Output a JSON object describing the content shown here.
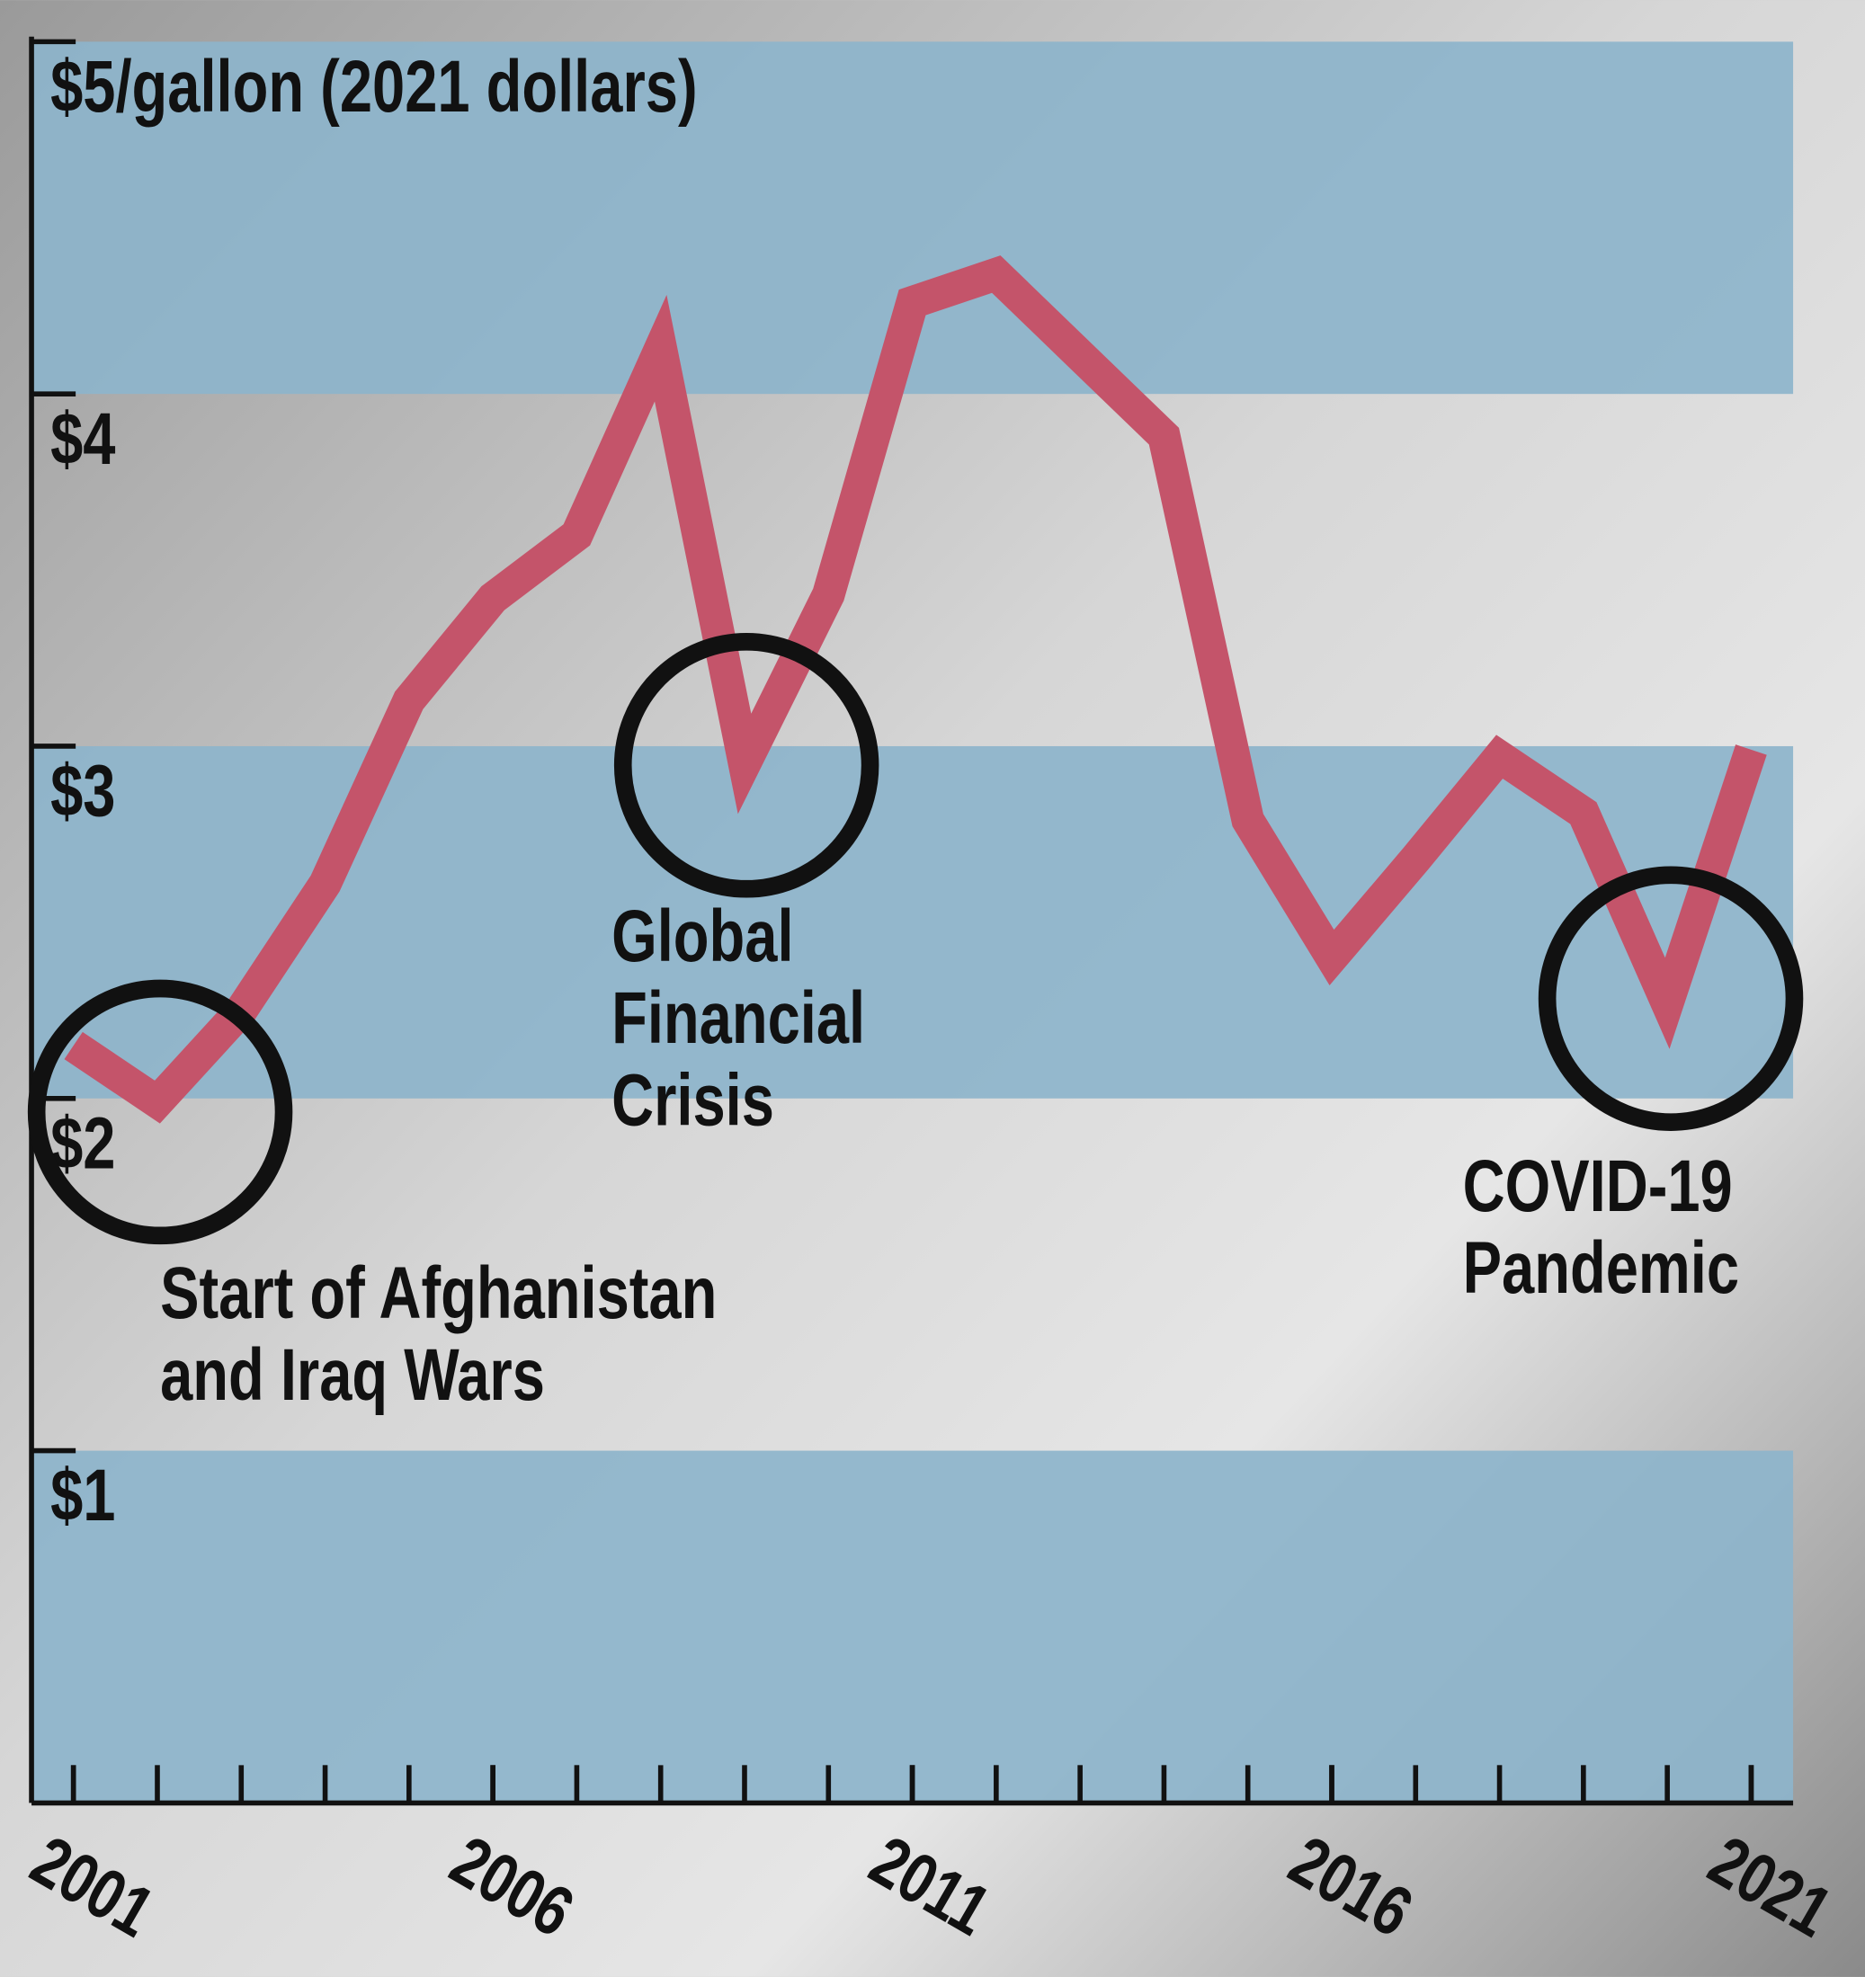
{
  "chart_data": {
    "type": "line",
    "x": [
      2001,
      2002,
      2003,
      2004,
      2005,
      2006,
      2007,
      2008,
      2009,
      2010,
      2011,
      2012,
      2013,
      2014,
      2015,
      2016,
      2017,
      2018,
      2019,
      2020,
      2021
    ],
    "series": [
      {
        "color": "#c4546a",
        "values": [
          2.15,
          1.99,
          2.25,
          2.61,
          3.13,
          3.42,
          3.6,
          4.13,
          2.95,
          3.43,
          4.26,
          4.34,
          4.11,
          3.88,
          2.79,
          2.4,
          2.68,
          2.97,
          2.81,
          2.27,
          2.99
        ]
      }
    ],
    "xlim": [
      2000.5,
      2021.5
    ],
    "xticks": [
      2001,
      2006,
      2011,
      2016,
      2021
    ],
    "ylim": [
      0,
      5
    ],
    "yticks": [
      {
        "value": 1,
        "label": "$1"
      },
      {
        "value": 2,
        "label": "$2"
      },
      {
        "value": 3,
        "label": "$3"
      },
      {
        "value": 4,
        "label": "$4"
      },
      {
        "value": 5,
        "label": "$5/gallon (2021 dollars)"
      }
    ],
    "band_color": "#8db4cb",
    "annotations": [
      {
        "lines": [
          "Start of Afghanistan",
          "and Iraq Wars"
        ]
      },
      {
        "lines": [
          "Global",
          "Financial",
          "Crisis"
        ]
      },
      {
        "lines": [
          "COVID-19",
          "Pandemic"
        ]
      }
    ]
  }
}
